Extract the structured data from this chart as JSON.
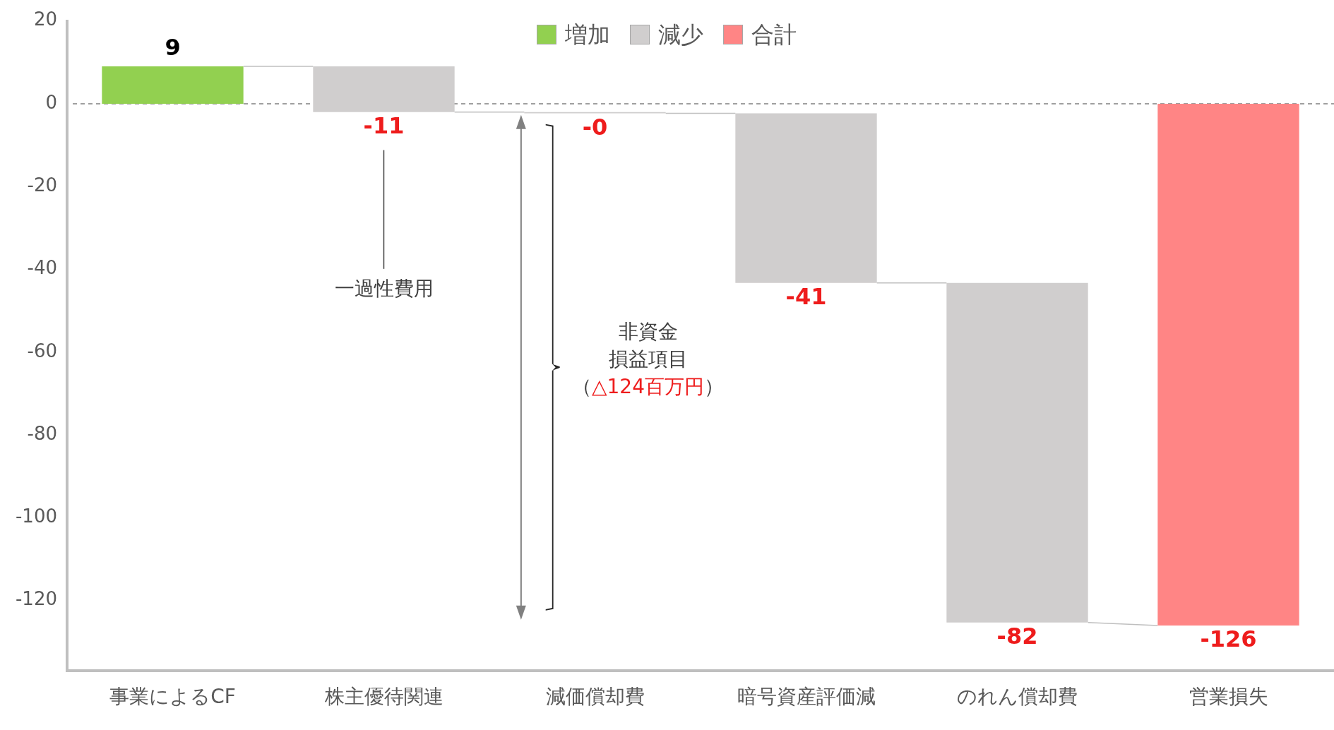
{
  "chart_data": {
    "type": "bar",
    "categories": [
      "事業によるCF",
      "株主優待関連",
      "減価償却費",
      "暗号資産評価減",
      "のれん償却費",
      "営業損失"
    ],
    "series": [
      {
        "name": "増加",
        "color": "#92d050",
        "values": [
          9,
          null,
          null,
          null,
          null,
          null
        ],
        "base": [
          0,
          null,
          null,
          null,
          null,
          null
        ]
      },
      {
        "name": "減少",
        "color": "#d0cece",
        "values": [
          null,
          -11,
          -0.3,
          -41,
          -82,
          null
        ],
        "base": [
          null,
          9,
          -2,
          -2.3,
          -43.3,
          null
        ]
      },
      {
        "name": "合計",
        "color": "#ff8585",
        "values": [
          null,
          null,
          null,
          null,
          null,
          -126
        ],
        "base": [
          null,
          null,
          null,
          null,
          null,
          0
        ]
      }
    ],
    "value_labels": [
      "9",
      "-11",
      "-0",
      "-41",
      "-82",
      "-126"
    ],
    "ylim": [
      -137,
      20
    ],
    "yticks": [
      20,
      0,
      -20,
      -40,
      -60,
      -80,
      -100,
      -120
    ],
    "grid": false,
    "legend": "top",
    "ref_lines": [
      {
        "axis": "y",
        "value": 0,
        "color": "#808080",
        "line_style": "dashed"
      }
    ],
    "annotations": [
      "一過性費用",
      "非資金",
      "損益項目",
      "（△124百万円）"
    ]
  }
}
